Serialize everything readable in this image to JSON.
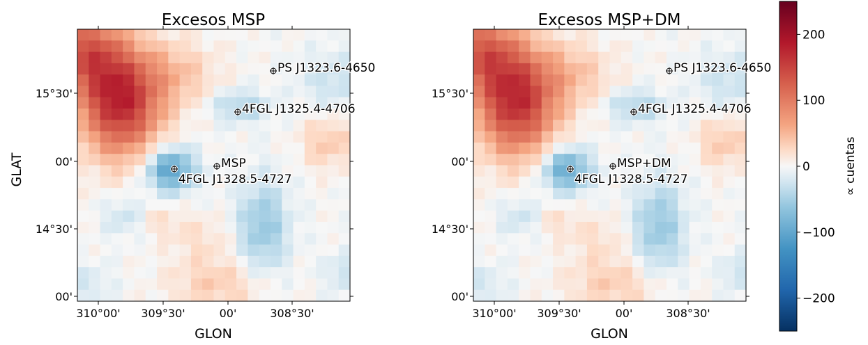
{
  "chart_data": [
    {
      "type": "heatmap",
      "title": "Excesos MSP",
      "xlabel": "GLON",
      "ylabel": "GLAT",
      "x_tick_labels": [
        "310°00'",
        "309°30'",
        "00'",
        "308°30'"
      ],
      "y_tick_labels": [
        "15°30'",
        "00'",
        "14°30'",
        "00'"
      ],
      "colormap": "RdBu_r",
      "vmin": -250,
      "vmax": 250,
      "sources": [
        {
          "label": "PS J1323.6-4650"
        },
        {
          "label": "4FGL J1325.4-4706"
        },
        {
          "label": "MSP"
        },
        {
          "label": "4FGL J1328.5-4727"
        }
      ],
      "features": {
        "max_excess": "~170 (upper-left)",
        "min_excess": "~-110 (around 4FGL J1328.5-4727)",
        "background": "near 0 with mild positive excess at lower centre"
      }
    },
    {
      "type": "heatmap",
      "title": "Excesos MSP+DM",
      "xlabel": "GLON",
      "ylabel": "",
      "x_tick_labels": [
        "310°00'",
        "309°30'",
        "00'",
        "308°30'"
      ],
      "y_tick_labels": [
        "15°30'",
        "00'",
        "14°30'",
        "00'"
      ],
      "colormap": "RdBu_r",
      "vmin": -250,
      "vmax": 250,
      "sources": [
        {
          "label": "PS J1323.6-4650"
        },
        {
          "label": "4FGL J1325.4-4706"
        },
        {
          "label": "MSP+DM"
        },
        {
          "label": "4FGL J1328.5-4727"
        }
      ],
      "features": {
        "max_excess": "~170 (upper-left)",
        "min_excess": "~-100 (around 4FGL J1328.5-4727)",
        "background": "near 0, slightly weaker residuals than MSP-only"
      }
    }
  ],
  "colorbar": {
    "label": "∝ cuentas",
    "ticks": [
      -200,
      -100,
      0,
      100,
      200
    ],
    "tick_labels": [
      "−200",
      "−100",
      "0",
      "100",
      "200"
    ],
    "range": [
      -250,
      250
    ]
  }
}
